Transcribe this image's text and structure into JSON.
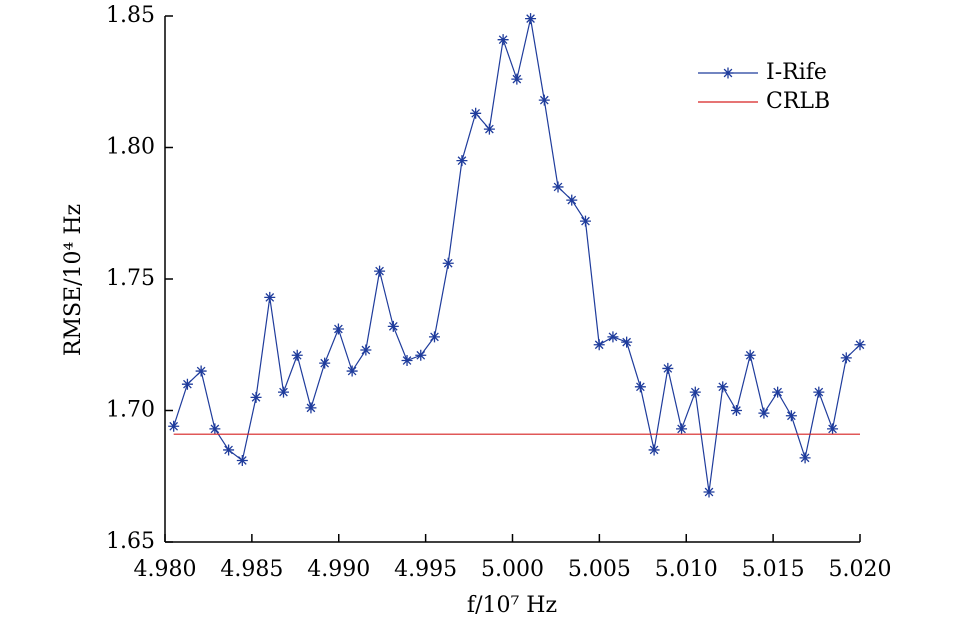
{
  "chart_data": {
    "type": "line",
    "xlabel": "f/10⁷ Hz",
    "ylabel": "RMSE/10⁴ Hz",
    "x": [
      4.9805,
      4.98129,
      4.98208,
      4.98287,
      4.98366,
      4.98445,
      4.98524,
      4.98603,
      4.98682,
      4.98761,
      4.9884,
      4.98919,
      4.98998,
      4.99077,
      4.99156,
      4.99235,
      4.99314,
      4.99393,
      4.99472,
      4.99551,
      4.9963,
      4.99709,
      4.99788,
      4.99867,
      4.99946,
      5.00025,
      5.00104,
      5.00183,
      5.00262,
      5.00341,
      5.0042,
      5.00499,
      5.00578,
      5.00657,
      5.00736,
      5.00815,
      5.00894,
      5.00973,
      5.01052,
      5.01131,
      5.0121,
      5.01289,
      5.01368,
      5.01447,
      5.01526,
      5.01605,
      5.01684,
      5.01763,
      5.01842,
      5.01921,
      5.02
    ],
    "series": [
      {
        "name": "I-Rife",
        "color": "#1f3c9c",
        "marker": "asterisk",
        "values": [
          1.694,
          1.71,
          1.715,
          1.693,
          1.685,
          1.681,
          1.705,
          1.743,
          1.707,
          1.721,
          1.701,
          1.718,
          1.731,
          1.715,
          1.723,
          1.753,
          1.732,
          1.719,
          1.721,
          1.728,
          1.756,
          1.795,
          1.813,
          1.807,
          1.841,
          1.826,
          1.849,
          1.818,
          1.785,
          1.78,
          1.772,
          1.725,
          1.728,
          1.726,
          1.709,
          1.685,
          1.716,
          1.693,
          1.707,
          1.669,
          1.709,
          1.7,
          1.721,
          1.699,
          1.707,
          1.698,
          1.682,
          1.707,
          1.693,
          1.72,
          1.725
        ]
      },
      {
        "name": "CRLB",
        "color": "#d62020",
        "values": [
          1.691,
          1.691,
          1.691,
          1.691,
          1.691,
          1.691,
          1.691,
          1.691,
          1.691,
          1.691,
          1.691,
          1.691,
          1.691,
          1.691,
          1.691,
          1.691,
          1.691,
          1.691,
          1.691,
          1.691,
          1.691,
          1.691,
          1.691,
          1.691,
          1.691,
          1.691,
          1.691,
          1.691,
          1.691,
          1.691,
          1.691,
          1.691,
          1.691,
          1.691,
          1.691,
          1.691,
          1.691,
          1.691,
          1.691,
          1.691,
          1.691,
          1.691,
          1.691,
          1.691,
          1.691,
          1.691,
          1.691,
          1.691,
          1.691,
          1.691,
          1.691
        ]
      }
    ],
    "xlim": [
      4.98,
      5.02
    ],
    "xticks": [
      {
        "value": 4.98,
        "label": "4.980"
      },
      4.985,
      {
        "value": 4.99,
        "label": "4.990"
      },
      4.995,
      {
        "value": 5.0,
        "label": "5.000"
      },
      5.005,
      {
        "value": 5.01,
        "label": "5.010"
      },
      5.015,
      {
        "value": 5.02,
        "label": "5.020"
      }
    ],
    "ylim": [
      1.65,
      1.85
    ],
    "yticks": [
      1.65,
      {
        "value": 1.7,
        "label": "1.70"
      },
      1.75,
      {
        "value": 1.8,
        "label": "1.80"
      },
      1.85
    ],
    "legend": "upper right"
  }
}
